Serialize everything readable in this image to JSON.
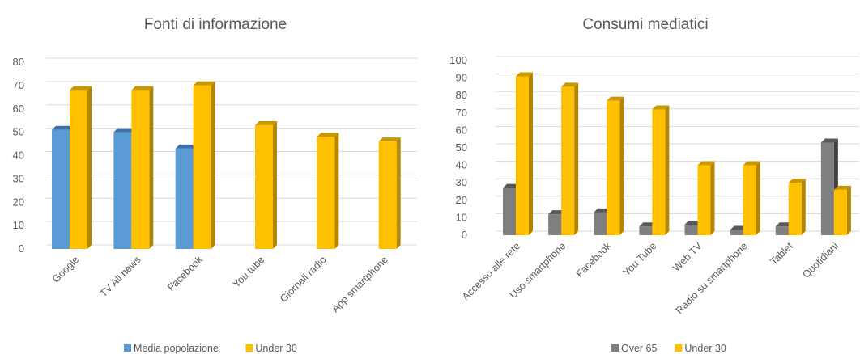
{
  "chart_data": [
    {
      "type": "bar",
      "title": "Fonti di informazione",
      "categories": [
        "Google",
        "TV All news",
        "Facebook",
        "You tube",
        "Giornali radio",
        "App smartphone"
      ],
      "series": [
        {
          "name": "Media popolazione",
          "values": [
            51,
            50,
            43,
            null,
            null,
            null
          ],
          "color": "#5b9bd5",
          "side": "#3d7ab8",
          "top": "#3f6fa5"
        },
        {
          "name": "Under 30",
          "values": [
            68,
            68,
            70,
            53,
            48,
            46
          ],
          "color": "#ffc000",
          "side": "#b38600",
          "top": "#c99700"
        }
      ],
      "ylim": [
        0,
        80
      ],
      "yticks": [
        0,
        10,
        20,
        30,
        40,
        50,
        60,
        70,
        80
      ],
      "grid": true,
      "legend_position": "bottom"
    },
    {
      "type": "bar",
      "title": "Consumi mediatici",
      "categories": [
        "Accesso alle rete",
        "Uso smartphone",
        "Facebook",
        "You Tube",
        "Web TV",
        "Radio su smartphone",
        "Tablet",
        "Quotidiani"
      ],
      "series": [
        {
          "name": "Over 65",
          "values": [
            27,
            12,
            13,
            5,
            6,
            3,
            5,
            53
          ],
          "color": "#7f7f7f",
          "side": "#3f3f3f",
          "top": "#595959"
        },
        {
          "name": "Under 30",
          "values": [
            91,
            85,
            77,
            72,
            40,
            40,
            30,
            26
          ],
          "color": "#ffc000",
          "side": "#b38600",
          "top": "#c99700"
        }
      ],
      "ylim": [
        0,
        100
      ],
      "yticks": [
        0,
        10,
        20,
        30,
        40,
        50,
        60,
        70,
        80,
        90,
        100
      ],
      "grid": true,
      "legend_position": "bottom"
    }
  ]
}
